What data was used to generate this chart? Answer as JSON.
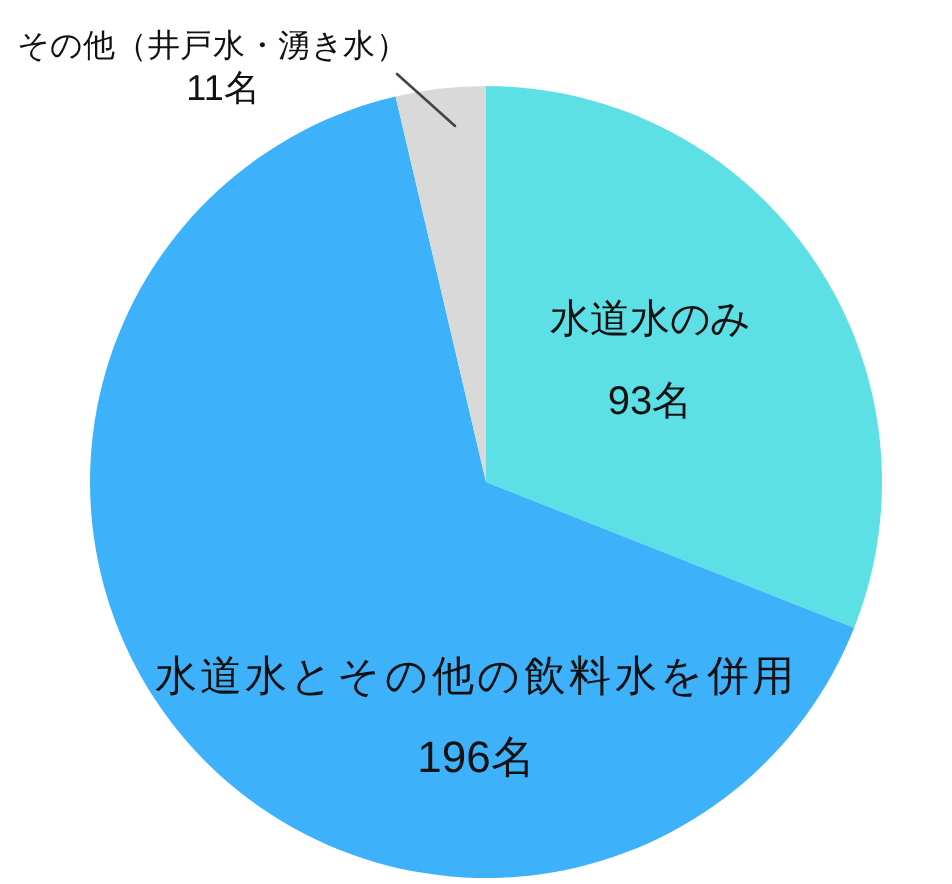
{
  "chart_data": {
    "type": "pie",
    "categories": [
      "水道水のみ",
      "水道水とその他の飲料水を併用",
      "その他（井戸水・湧き水）"
    ],
    "values": [
      93,
      196,
      11
    ],
    "colors": [
      "#5ddfe6",
      "#3db2fb",
      "#d9d9d9"
    ],
    "value_labels": [
      "93名",
      "196名",
      "11名"
    ]
  }
}
